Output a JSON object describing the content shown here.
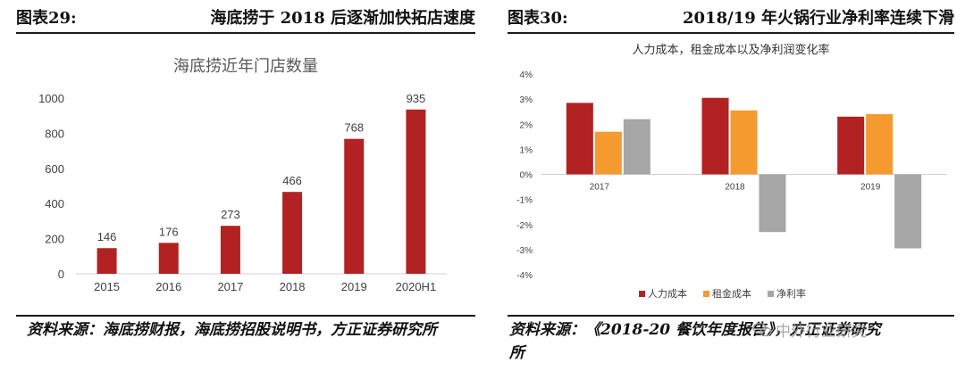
{
  "left": {
    "figure_number": "图表29:",
    "figure_title": "海底捞于 2018 后逐渐加快拓店速度",
    "source": "资料来源：海底捞财报，海底捞招股说明书，方正证券研究所"
  },
  "right": {
    "figure_number": "图表30:",
    "figure_title": "2018/19 年火锅行业净利率连续下滑",
    "source": "资料来源：《2018-20 餐饮年度报告》，方正证券研究所",
    "watermark": "中外行业研究"
  },
  "chart_data": [
    {
      "type": "bar",
      "title": "海底捞近年门店数量",
      "categories": [
        "2015",
        "2016",
        "2017",
        "2018",
        "2019",
        "2020H1"
      ],
      "values": [
        146,
        176,
        273,
        466,
        768,
        935
      ],
      "ylim": [
        0,
        1000
      ],
      "yticks": [
        0,
        200,
        400,
        600,
        800,
        1000
      ],
      "data_labels": true,
      "grid": false,
      "color": "#b22222"
    },
    {
      "type": "bar",
      "title": "人力成本，租金成本以及净利润变化率",
      "categories": [
        "2017",
        "2018",
        "2019"
      ],
      "series": [
        {
          "name": "人力成本",
          "values": [
            2.85,
            3.05,
            2.3
          ],
          "color": "#b22222"
        },
        {
          "name": "租金成本",
          "values": [
            1.7,
            2.55,
            2.4
          ],
          "color": "#f59a2f"
        },
        {
          "name": "净利率",
          "values": [
            2.2,
            -2.3,
            -2.95
          ],
          "color": "#a6a6a6"
        }
      ],
      "ylim": [
        -4,
        4
      ],
      "yticks": [
        "4%",
        "3%",
        "2%",
        "1%",
        "0%",
        "-1%",
        "-2%",
        "-3%",
        "-4%"
      ],
      "legend_position": "bottom",
      "grid": false
    }
  ]
}
